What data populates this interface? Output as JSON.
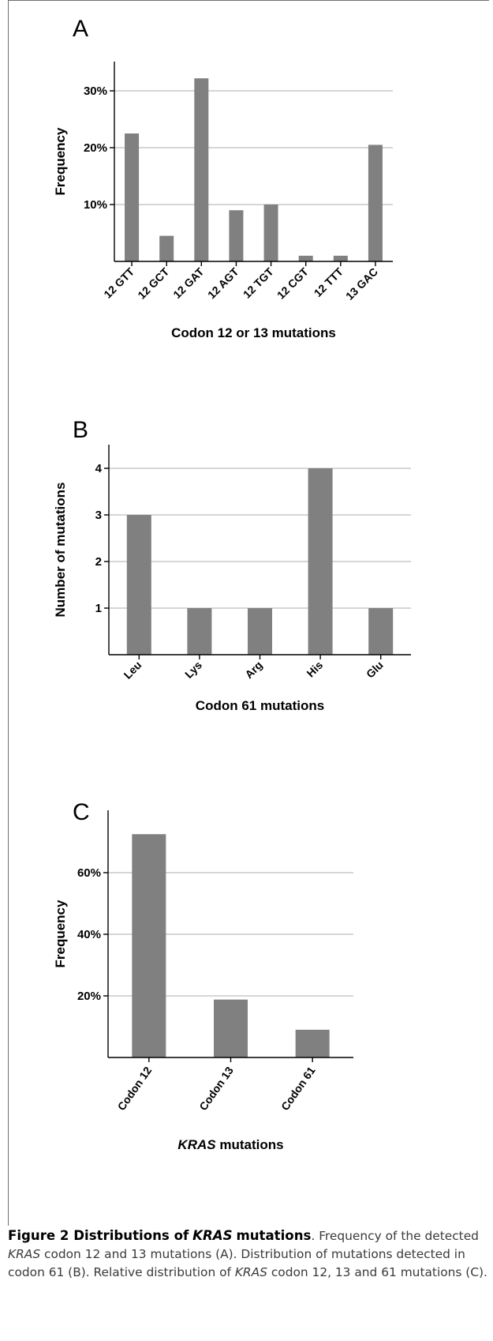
{
  "chart_data": [
    {
      "panel": "A",
      "type": "bar",
      "xlabel": "Codon 12 or 13 mutations",
      "ylabel": "Frequency",
      "categories": [
        "12 GTT",
        "12 GCT",
        "12 GAT",
        "12 AGT",
        "12 TGT",
        "12 CGT",
        "12 TTT",
        "13 GAC"
      ],
      "values": [
        22.5,
        4.5,
        32.2,
        9.0,
        10.0,
        1.0,
        1.0,
        20.5
      ],
      "ylim": [
        0,
        35
      ],
      "yticks": [
        10,
        20,
        30
      ],
      "ytick_labels": [
        "10%",
        "20%",
        "30%"
      ],
      "grid": true,
      "bar_color": "#808080"
    },
    {
      "panel": "B",
      "type": "bar",
      "xlabel": "Codon 61 mutations",
      "ylabel": "Number of mutations",
      "categories": [
        "Leu",
        "Lys",
        "Arg",
        "His",
        "Glu"
      ],
      "values": [
        3,
        1,
        1,
        4,
        1
      ],
      "ylim": [
        0,
        4.5
      ],
      "yticks": [
        1,
        2,
        3,
        4
      ],
      "ytick_labels": [
        "1",
        "2",
        "3",
        "4"
      ],
      "grid": true,
      "bar_color": "#808080"
    },
    {
      "panel": "C",
      "type": "bar",
      "xlabel": "KRAS mutations",
      "ylabel": "Frequency",
      "categories": [
        "Codon 12",
        "Codon 13",
        "Codon 61"
      ],
      "values": [
        72.5,
        18.8,
        9.0
      ],
      "ylim": [
        0,
        78
      ],
      "yticks": [
        20,
        40,
        60
      ],
      "ytick_labels": [
        "20%",
        "40%",
        "60%"
      ],
      "grid": true,
      "bar_color": "#808080"
    }
  ],
  "caption": {
    "figure_label": "Figure 2 Distributions of",
    "figure_gene": "KRAS",
    "figure_label_end": "mutations",
    "t1": ". Frequency of the detected ",
    "gene1": "KRAS",
    "t2": " codon 12 and 13 mutations (A). Distribution of mutations detected in codon 61 (B). Relative distribution of ",
    "gene2": "KRAS",
    "t3": " codon 12, 13 and 61 mutations (C)."
  }
}
